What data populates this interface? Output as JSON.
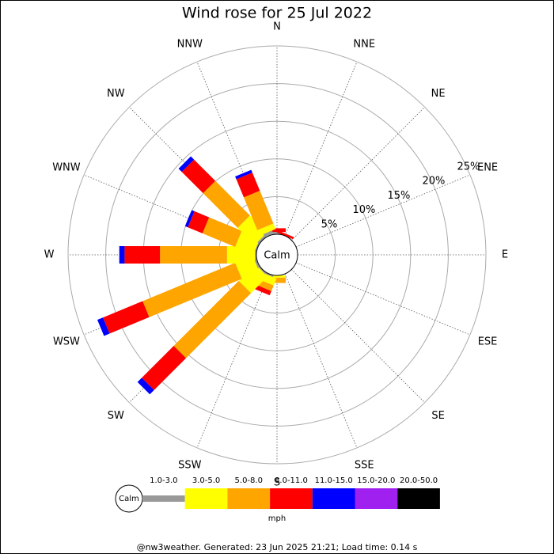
{
  "chart_data": {
    "type": "windrose",
    "title": "Wind rose for 25 Jul 2022",
    "directions": [
      "N",
      "NNE",
      "NE",
      "ENE",
      "E",
      "ESE",
      "SE",
      "SSE",
      "S",
      "SSW",
      "SW",
      "WSW",
      "W",
      "WNW",
      "NW",
      "NNW"
    ],
    "calm_label": "Calm",
    "rlim": [
      0,
      25
    ],
    "rticks": [
      {
        "value": 5,
        "label": "5%"
      },
      {
        "value": 10,
        "label": "10%"
      },
      {
        "value": 15,
        "label": "15%"
      },
      {
        "value": 20,
        "label": "20%"
      },
      {
        "value": 25,
        "label": "25%"
      }
    ],
    "series": [
      {
        "name": "1.0-3.0",
        "color": "#999999",
        "values": [
          0.3,
          0,
          0,
          0,
          0,
          0,
          0,
          0,
          0,
          0.2,
          0.2,
          0.3,
          0.2,
          0.2,
          0.3,
          0.5
        ]
      },
      {
        "name": "3.0-5.0",
        "color": "#ffff00",
        "values": [
          0,
          0,
          0,
          0,
          0,
          0,
          0,
          0,
          0.3,
          1.0,
          3.1,
          2.5,
          3.7,
          2.6,
          3.2,
          0.8
        ]
      },
      {
        "name": "5.0-8.0",
        "color": "#ffa500",
        "values": [
          0,
          0,
          0,
          0,
          0,
          0,
          0,
          0,
          0.7,
          0.8,
          12.2,
          13.3,
          8.9,
          4.7,
          6.5,
          4.7
        ]
      },
      {
        "name": "8.0-11.0",
        "color": "#ff0000",
        "values": [
          0.5,
          0.3,
          0,
          0,
          0,
          0,
          0,
          0,
          0,
          0.6,
          6.0,
          5.7,
          4.7,
          2.1,
          4.0,
          2.6
        ]
      },
      {
        "name": "11.0-15.0",
        "color": "#0000ff",
        "values": [
          0,
          0,
          0,
          0,
          0,
          0,
          0,
          0,
          0,
          0,
          0.8,
          0.8,
          0.7,
          0.4,
          0.6,
          0.4
        ]
      },
      {
        "name": "15.0-20.0",
        "color": "#a020f0",
        "values": [
          0,
          0,
          0,
          0,
          0,
          0,
          0,
          0,
          0,
          0,
          0,
          0,
          0,
          0,
          0,
          0
        ]
      },
      {
        "name": "20.0-50.0",
        "color": "#000000",
        "values": [
          0,
          0,
          0,
          0,
          0,
          0,
          0,
          0,
          0,
          0,
          0,
          0,
          0,
          0,
          0,
          0
        ]
      }
    ],
    "unit_label": "mph",
    "footer": "@nw3weather. Generated: 23 Jun 2025 21:21; Load time: 0.14 s"
  }
}
